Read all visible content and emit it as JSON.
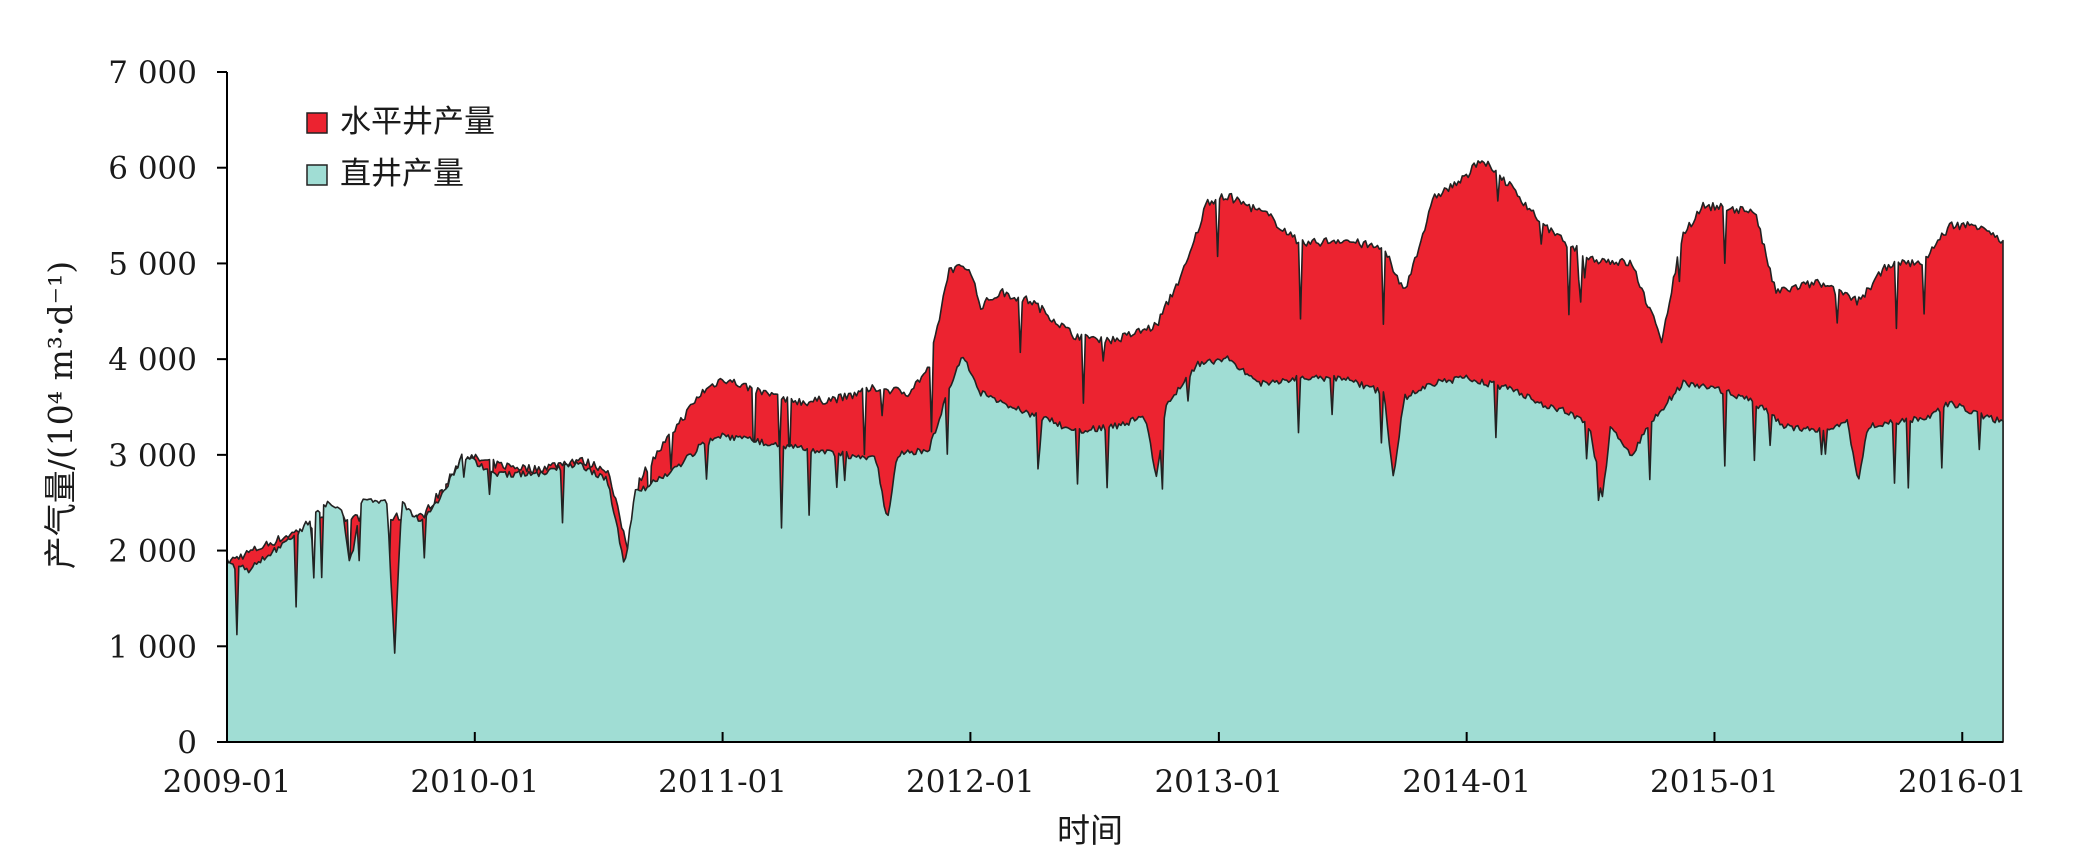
{
  "chart_data": {
    "type": "area",
    "stacked": true,
    "ylabel_main": "产气量",
    "ylabel_unit": "/(10⁴ m³·d⁻¹)",
    "xlabel": "时间",
    "ylim": [
      0,
      7000
    ],
    "yticks": [
      0,
      1000,
      2000,
      3000,
      4000,
      5000,
      6000,
      7000
    ],
    "ytick_labels": [
      "0",
      "1 000",
      "2 000",
      "3 000",
      "4 000",
      "5 000",
      "6 000",
      "7 000"
    ],
    "xlim": [
      "2009-01",
      "2016-03"
    ],
    "xticks": [
      "2009-01",
      "2010-01",
      "2011-01",
      "2012-01",
      "2013-01",
      "2014-01",
      "2015-01",
      "2016-01"
    ],
    "legend_position": "top-left",
    "series": [
      {
        "name": "水平井产量",
        "color": "#ec2330",
        "points": [
          [
            "2009-01-01",
            1880
          ],
          [
            "2009-06-01",
            2350
          ],
          [
            "2009-10-15",
            2350
          ],
          [
            "2009-11-15",
            2650
          ],
          [
            "2009-12-15",
            3000
          ],
          [
            "2010-02-01",
            2900
          ],
          [
            "2010-04-01",
            2850
          ],
          [
            "2010-06-01",
            2950
          ],
          [
            "2010-07-15",
            2850
          ],
          [
            "2010-08-15",
            2000
          ],
          [
            "2010-09-01",
            2750
          ],
          [
            "2010-10-15",
            3200
          ],
          [
            "2010-12-01",
            3650
          ],
          [
            "2011-01-01",
            3800
          ],
          [
            "2011-03-01",
            3650
          ],
          [
            "2011-05-01",
            3550
          ],
          [
            "2011-07-01",
            3600
          ],
          [
            "2011-08-15",
            3700
          ],
          [
            "2011-10-01",
            3650
          ],
          [
            "2011-11-01",
            3900
          ],
          [
            "2011-12-01",
            4950
          ],
          [
            "2012-01-01",
            4950
          ],
          [
            "2012-01-15",
            4550
          ],
          [
            "2012-02-15",
            4700
          ],
          [
            "2012-04-01",
            4600
          ],
          [
            "2012-06-01",
            4250
          ],
          [
            "2012-08-01",
            4200
          ],
          [
            "2012-10-01",
            4350
          ],
          [
            "2012-11-15",
            5000
          ],
          [
            "2012-12-15",
            5650
          ],
          [
            "2013-01-15",
            5700
          ],
          [
            "2013-03-15",
            5500
          ],
          [
            "2013-05-01",
            5200
          ],
          [
            "2013-07-01",
            5250
          ],
          [
            "2013-09-01",
            5150
          ],
          [
            "2013-10-01",
            4700
          ],
          [
            "2013-11-15",
            5700
          ],
          [
            "2014-01-01",
            5900
          ],
          [
            "2014-01-20",
            6100
          ],
          [
            "2014-03-01",
            5850
          ],
          [
            "2014-05-01",
            5350
          ],
          [
            "2014-07-01",
            5050
          ],
          [
            "2014-09-01",
            5000
          ],
          [
            "2014-10-15",
            4200
          ],
          [
            "2014-11-15",
            5300
          ],
          [
            "2014-12-15",
            5600
          ],
          [
            "2015-03-01",
            5550
          ],
          [
            "2015-04-01",
            4700
          ],
          [
            "2015-06-01",
            4800
          ],
          [
            "2015-08-01",
            4600
          ],
          [
            "2015-09-15",
            5000
          ],
          [
            "2015-11-01",
            5000
          ],
          [
            "2015-12-15",
            5400
          ],
          [
            "2016-02-01",
            5400
          ],
          [
            "2016-03-01",
            5200
          ]
        ]
      },
      {
        "name": "直井产量",
        "color": "#a0ddd4",
        "points": [
          [
            "2009-01-01",
            1850
          ],
          [
            "2009-02-01",
            1800
          ],
          [
            "2009-04-01",
            2100
          ],
          [
            "2009-06-01",
            2500
          ],
          [
            "2009-06-20",
            2450
          ],
          [
            "2009-07-01",
            1850
          ],
          [
            "2009-07-20",
            2550
          ],
          [
            "2009-08-25",
            2500
          ],
          [
            "2009-09-05",
            900
          ],
          [
            "2009-09-15",
            2500
          ],
          [
            "2009-10-15",
            2300
          ],
          [
            "2009-11-15",
            2600
          ],
          [
            "2009-12-15",
            3000
          ],
          [
            "2010-02-01",
            2800
          ],
          [
            "2010-04-01",
            2800
          ],
          [
            "2010-06-01",
            2900
          ],
          [
            "2010-07-15",
            2750
          ],
          [
            "2010-08-10",
            1850
          ],
          [
            "2010-08-25",
            2600
          ],
          [
            "2010-10-15",
            2800
          ],
          [
            "2010-12-01",
            3100
          ],
          [
            "2011-01-01",
            3200
          ],
          [
            "2011-04-01",
            3100
          ],
          [
            "2011-07-01",
            3000
          ],
          [
            "2011-08-15",
            2950
          ],
          [
            "2011-09-01",
            2300
          ],
          [
            "2011-09-15",
            3000
          ],
          [
            "2011-11-01",
            3050
          ],
          [
            "2011-12-01",
            3700
          ],
          [
            "2011-12-20",
            4050
          ],
          [
            "2012-01-15",
            3650
          ],
          [
            "2012-03-01",
            3500
          ],
          [
            "2012-05-01",
            3350
          ],
          [
            "2012-06-01",
            3250
          ],
          [
            "2012-08-01",
            3300
          ],
          [
            "2012-09-15",
            3400
          ],
          [
            "2012-10-01",
            2750
          ],
          [
            "2012-10-15",
            3500
          ],
          [
            "2012-12-01",
            3950
          ],
          [
            "2013-01-15",
            4000
          ],
          [
            "2013-03-01",
            3750
          ],
          [
            "2013-05-01",
            3800
          ],
          [
            "2013-07-01",
            3800
          ],
          [
            "2013-09-01",
            3650
          ],
          [
            "2013-09-15",
            2750
          ],
          [
            "2013-10-01",
            3600
          ],
          [
            "2013-11-15",
            3750
          ],
          [
            "2014-01-01",
            3800
          ],
          [
            "2014-03-01",
            3700
          ],
          [
            "2014-05-01",
            3500
          ],
          [
            "2014-06-01",
            3450
          ],
          [
            "2014-07-01",
            3300
          ],
          [
            "2014-07-20",
            2550
          ],
          [
            "2014-08-01",
            3300
          ],
          [
            "2014-09-01",
            3000
          ],
          [
            "2014-10-01",
            3350
          ],
          [
            "2014-11-15",
            3750
          ],
          [
            "2015-01-01",
            3700
          ],
          [
            "2015-03-01",
            3550
          ],
          [
            "2015-04-15",
            3300
          ],
          [
            "2015-06-01",
            3250
          ],
          [
            "2015-07-15",
            3350
          ],
          [
            "2015-08-01",
            2700
          ],
          [
            "2015-08-15",
            3300
          ],
          [
            "2015-10-01",
            3350
          ],
          [
            "2015-11-15",
            3400
          ],
          [
            "2015-12-15",
            3550
          ],
          [
            "2016-02-01",
            3400
          ],
          [
            "2016-03-01",
            3350
          ]
        ]
      }
    ]
  }
}
